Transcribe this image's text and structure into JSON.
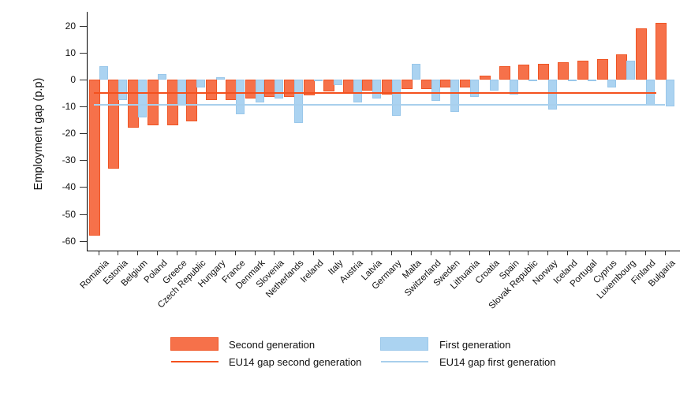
{
  "chart_data": {
    "type": "bar",
    "title": "",
    "ylabel": "Employment gap (p.p)",
    "ylim": [
      -60,
      22
    ],
    "yticks": [
      20,
      10,
      0,
      -10,
      -20,
      -30,
      -40,
      -50,
      -60
    ],
    "grid": false,
    "legend_position": "bottom",
    "categories": [
      "Romania",
      "Estonia",
      "Belgium",
      "Poland",
      "Greece",
      "Czech Republic",
      "Hungary",
      "France",
      "Denmark",
      "Slovenia",
      "Netherlands",
      "Ireland",
      "Italy",
      "Austria",
      "Latvia",
      "Germany",
      "Malta",
      "Switzerland",
      "Sweden",
      "Lithuania",
      "Croatia",
      "Spain",
      "Slovak Republic",
      "Norway",
      "Iceland",
      "Portugal",
      "Cyprus",
      "Luxembourg",
      "Finland",
      "Bulgaria"
    ],
    "series": [
      {
        "name": "Second generation",
        "color": "#f6714a",
        "border_color": "#ef5423",
        "values": [
          -58,
          -33,
          -18,
          -17,
          -17,
          -15.5,
          -7.5,
          -7.5,
          -7,
          -6.5,
          -6.5,
          -6,
          -4.5,
          -5,
          -4,
          -5.5,
          -3.5,
          -3.5,
          -3,
          -3,
          1.5,
          5,
          5.5,
          6,
          6.5,
          7,
          7.5,
          9.5,
          19,
          21
        ]
      },
      {
        "name": "First generation",
        "color": "#abd3f1",
        "border_color": "#99c7ea",
        "values": [
          5,
          -7.5,
          -14,
          2,
          -9.5,
          -3,
          1,
          -13,
          -8.5,
          -7,
          -16,
          -0.5,
          -2,
          -8.5,
          -7,
          -13.5,
          6,
          -8,
          -12,
          -6.5,
          -4,
          -5.5,
          -0.5,
          -11,
          -0.5,
          -0.5,
          -3,
          7,
          -9.5,
          -10
        ]
      }
    ],
    "ref_lines": [
      {
        "name": "EU14 gap second generation",
        "value": -5,
        "color": "#f4511e"
      },
      {
        "name": "EU14 gap first generation",
        "value": -9.5,
        "color": "#a8cfec"
      }
    ]
  }
}
